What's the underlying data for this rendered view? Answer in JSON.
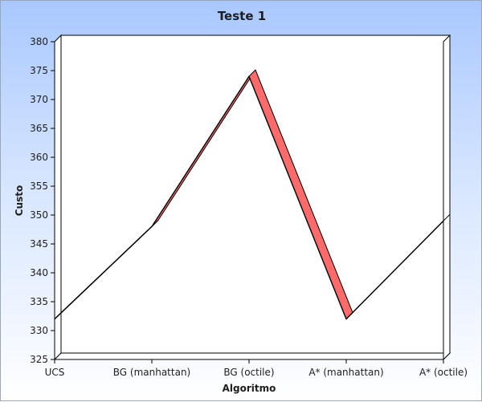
{
  "chart_data": {
    "type": "line",
    "title": "Teste 1",
    "xlabel": "Algoritmo",
    "ylabel": "Custo",
    "categories": [
      "UCS",
      "BG (manhattan)",
      "BG (octile)",
      "A* (manhattan)",
      "A* (octile)"
    ],
    "series": [
      {
        "values": [
          332,
          348,
          374,
          332,
          349
        ]
      }
    ],
    "ylim": [
      325,
      380
    ],
    "yticks": [
      325,
      330,
      335,
      340,
      345,
      350,
      355,
      360,
      365,
      370,
      375,
      380
    ],
    "grid": false,
    "legend": "none",
    "style": "3d-ribbon"
  },
  "colors": {
    "background_top": "#a9c8ff",
    "background_bottom": "#ffffff",
    "ribbon_fill": "#ff6b6b",
    "line": "#000000"
  }
}
